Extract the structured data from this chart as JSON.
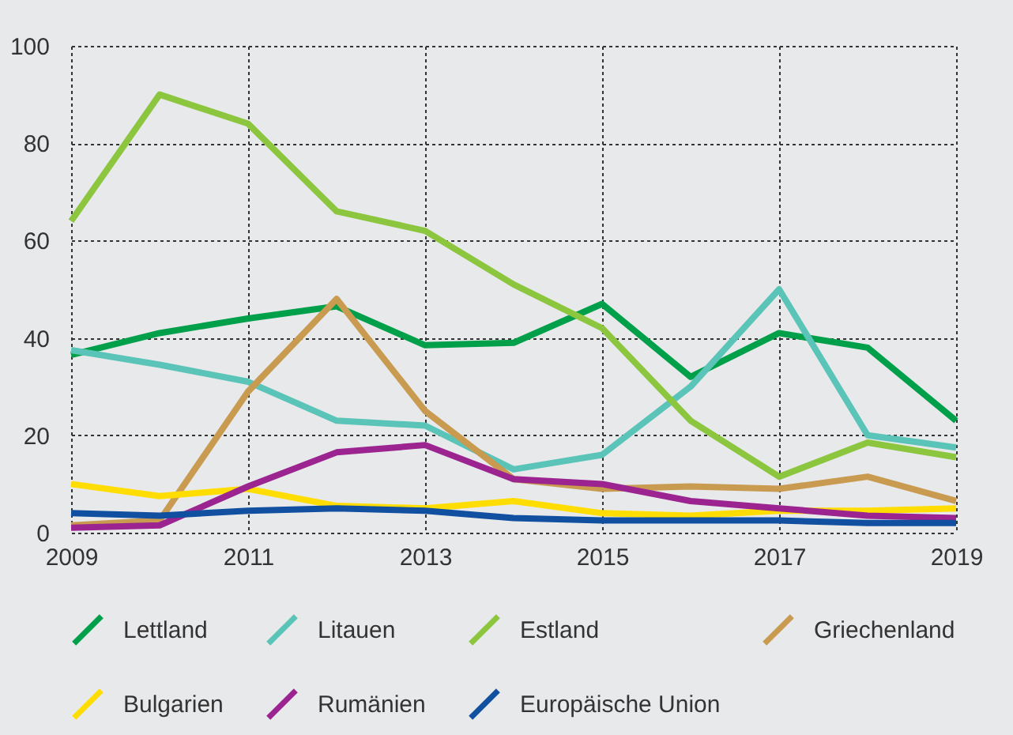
{
  "chart_data": {
    "type": "line",
    "x": [
      2009,
      2010,
      2011,
      2012,
      2013,
      2014,
      2015,
      2016,
      2017,
      2018,
      2019
    ],
    "xlim": [
      2009,
      2019
    ],
    "xticks": [
      2009,
      2011,
      2013,
      2015,
      2017,
      2019
    ],
    "ylim": [
      0,
      100
    ],
    "yticks": [
      0,
      20,
      40,
      60,
      80,
      100
    ],
    "grid": true,
    "legend": "bottom",
    "line_style": "solid",
    "marker": "none",
    "series": [
      {
        "name": "Lettland",
        "color": "#00a04a",
        "values": [
          36.5,
          41,
          44,
          46.5,
          38.5,
          39,
          47,
          32,
          41,
          38,
          23
        ]
      },
      {
        "name": "Litauen",
        "color": "#5bc4b8",
        "values": [
          37.5,
          34.5,
          31,
          23,
          22,
          13,
          16,
          30,
          50,
          20,
          17.5
        ]
      },
      {
        "name": "Estland",
        "color": "#8cc63f",
        "values": [
          64,
          90,
          84,
          66,
          62,
          51,
          42,
          23,
          11.5,
          18.5,
          15.5
        ]
      },
      {
        "name": "Griechenland",
        "color": "#c89b50",
        "values": [
          1.5,
          2.5,
          29,
          48,
          25,
          11,
          9,
          9.5,
          9,
          11.5,
          6.5
        ]
      },
      {
        "name": "Bulgarien",
        "color": "#ffdd00",
        "values": [
          10,
          7.5,
          9,
          5.5,
          5,
          6.5,
          4,
          3.5,
          4.5,
          4.5,
          5
        ]
      },
      {
        "name": "Rumänien",
        "color": "#9b2490",
        "values": [
          1,
          1.5,
          9.5,
          16.5,
          18,
          11,
          10,
          6.5,
          5,
          3.5,
          3
        ]
      },
      {
        "name": "Europäische Union",
        "color": "#1150a0",
        "values": [
          4,
          3.5,
          4.5,
          5,
          4.5,
          3,
          2.5,
          2.5,
          2.5,
          2,
          2
        ]
      }
    ]
  }
}
